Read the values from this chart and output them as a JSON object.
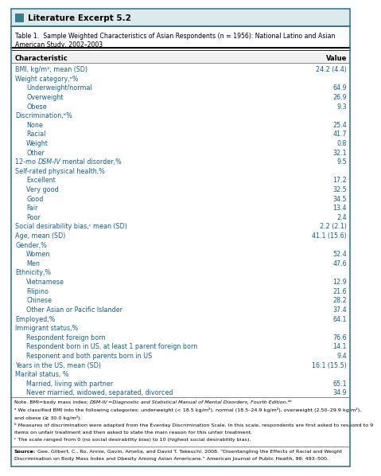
{
  "title": "Literature Excerpt 5.2",
  "table_title_1": "Table 1.  Sample Weighted Characteristics of Asian Respondents (n = 1956): National Latino and Asian",
  "table_title_2": "American Study, 2002–2003",
  "col_header_left": "Characteristic",
  "col_header_right": "Value",
  "rows": [
    {
      "label": "BMI, kg/m², mean (SD)",
      "value": "24.2 (4.4)",
      "indent": 0
    },
    {
      "label": "Weight category,ᵃ%",
      "value": "",
      "indent": 0
    },
    {
      "label": "Underweight/normal",
      "value": "64.9",
      "indent": 1
    },
    {
      "label": "Overweight",
      "value": "26.9",
      "indent": 1
    },
    {
      "label": "Obese",
      "value": "9.3",
      "indent": 1
    },
    {
      "label": "Discrimination,ᵇ%",
      "value": "",
      "indent": 0
    },
    {
      "label": "None",
      "value": "25.4",
      "indent": 1
    },
    {
      "label": "Racial",
      "value": "41.7",
      "indent": 1
    },
    {
      "label": "Weight",
      "value": "0.8",
      "indent": 1
    },
    {
      "label": "Other",
      "value": "32.1",
      "indent": 1
    },
    {
      "label": "12-mo DSM-IV mental disorder,%",
      "value": "9.5",
      "indent": 0
    },
    {
      "label": "Self-rated physical health,%",
      "value": "",
      "indent": 0
    },
    {
      "label": "Excellent",
      "value": "17.2",
      "indent": 1
    },
    {
      "label": "Very good",
      "value": "32.5",
      "indent": 1
    },
    {
      "label": "Good",
      "value": "34.5",
      "indent": 1
    },
    {
      "label": "Fair",
      "value": "13.4",
      "indent": 1
    },
    {
      "label": "Poor",
      "value": "2.4",
      "indent": 1
    },
    {
      "label": "Social desirability bias,ᶜ mean (SD)",
      "value": "2.2 (2.1)",
      "indent": 0
    },
    {
      "label": "Age, mean (SD)",
      "value": "41.1 (15.6)",
      "indent": 0
    },
    {
      "label": "Gender,%",
      "value": "",
      "indent": 0
    },
    {
      "label": "Women",
      "value": "52.4",
      "indent": 1
    },
    {
      "label": "Men",
      "value": "47.6",
      "indent": 1
    },
    {
      "label": "Ethnicity,%",
      "value": "",
      "indent": 0
    },
    {
      "label": "Vietnamese",
      "value": "12.9",
      "indent": 1
    },
    {
      "label": "Filipino",
      "value": "21.6",
      "indent": 1
    },
    {
      "label": "Chinese",
      "value": "28.2",
      "indent": 1
    },
    {
      "label": "Other Asian or Pacific Islander",
      "value": "37.4",
      "indent": 1
    },
    {
      "label": "Employed,%",
      "value": "64.1",
      "indent": 0
    },
    {
      "label": "Immigrant status,%",
      "value": "",
      "indent": 0
    },
    {
      "label": "Respondent foreign born",
      "value": "76.6",
      "indent": 1
    },
    {
      "label": "Respondent born in US, at least 1 parent foreign born",
      "value": "14.1",
      "indent": 1
    },
    {
      "label": "Responent and both parents born in US",
      "value": "9.4",
      "indent": 1
    },
    {
      "label": "Years in the US, mean (SD)",
      "value": "16.1 (15.5)",
      "indent": 0
    },
    {
      "label": "Marital status, %",
      "value": "",
      "indent": 0
    },
    {
      "label": "Married, living with partner",
      "value": "65.1",
      "indent": 1
    },
    {
      "label": "Never married, widowed, separated, divorced",
      "value": "34.9",
      "indent": 1
    }
  ],
  "notes_lines": [
    "Note. BMI=body mass index; DSM-IV=Diagnostic and Statistical Manual of Mental Disorders, Fourth Edition.ᵃᵃ",
    "ᵃ We classified BMI into the following categories: underweight (< 18.5 kg/m²), normal (18.5–24.9 kg/m²), overweight (2.50–29.9 kg/m²),",
    "and obese (≥ 30.0 kg/m²).",
    "ᵇ Measures of discrimination were adapted from the Everday Discrimination Scale. In this scale, respondents are first asked to respond to 9",
    "items on unfair treatment and then asked to state the main reason for this unfair treatment.",
    "ᶜ The scale ranged from 0 (no social desirability bias) to 10 (highest social desirability bias)."
  ],
  "source_line1": "Source: Gee, Gilbert, C., Ro, Annie, Gavin, Amelia, and David T. Takeuchi. 2008. “Disentangling the Effects of Racial and Weight",
  "source_line2": "Discrimination on Body Mass Index and Obesity Among Asian Americans.” American Journal of Public Health, 98: 493–500.",
  "title_bg": "#dce9ed",
  "title_icon_color": "#3d7a8a",
  "border_color": "#3d7a8a",
  "text_color_blue": "#1a5f8a",
  "text_color_black": "#000000",
  "header_line_color": "#555555",
  "note_line_color": "#888888"
}
